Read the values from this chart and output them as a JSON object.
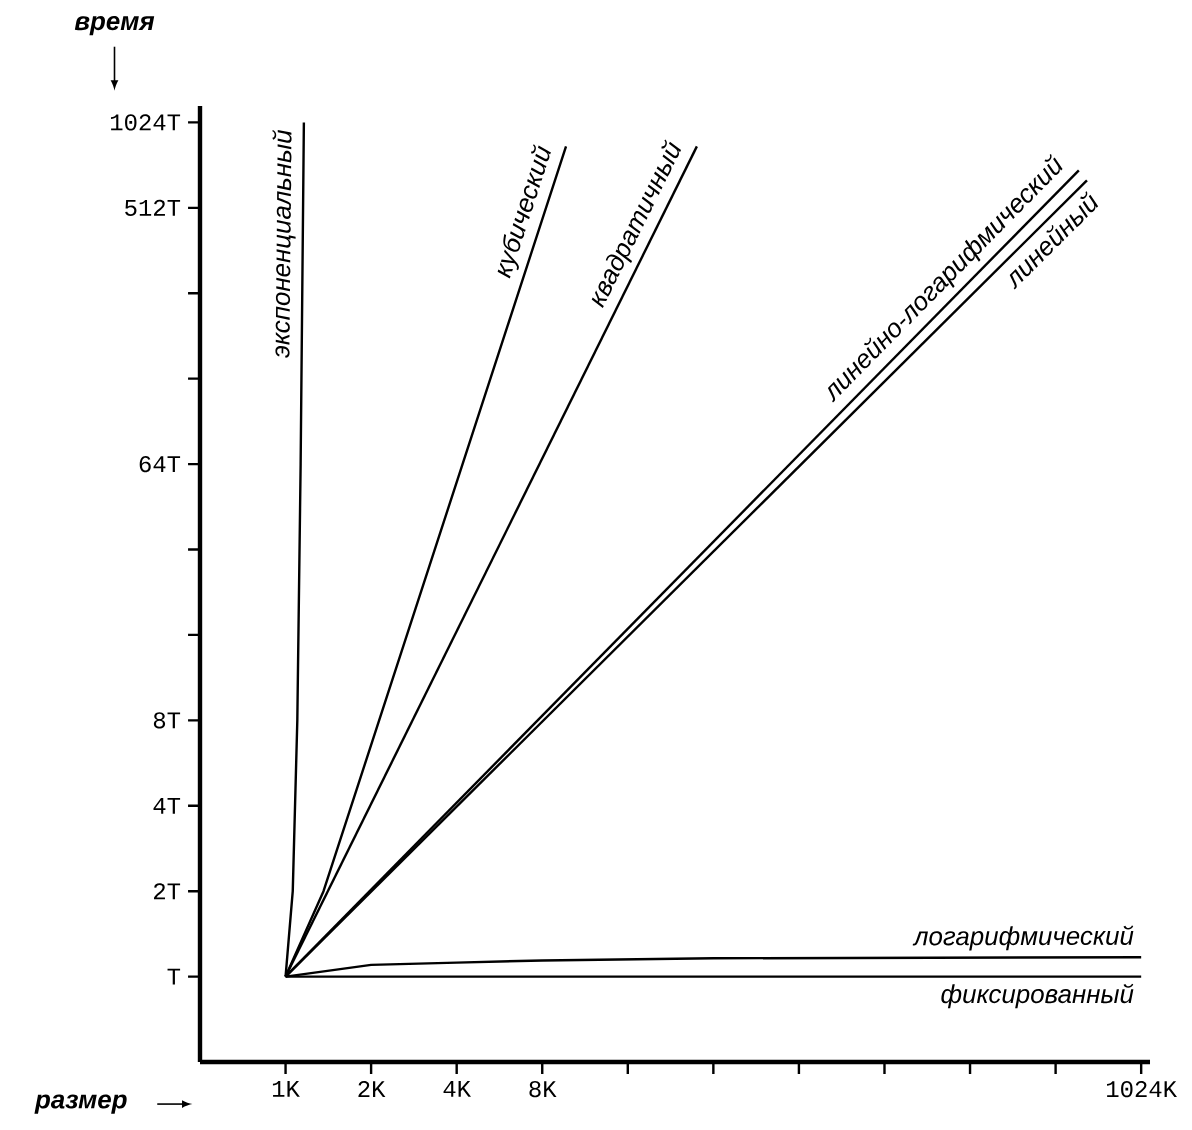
{
  "chart_data": {
    "type": "line",
    "xlabel": "размер",
    "ylabel": "время",
    "log": "xy",
    "marker": "none",
    "line_style": "solid",
    "xlim": [
      0.5,
      1100
    ],
    "ylim": [
      0.5,
      1170
    ],
    "xticks": [
      {
        "value": 1,
        "label": "1K"
      },
      {
        "value": 2,
        "label": "2K"
      },
      {
        "value": 4,
        "label": "4K"
      },
      {
        "value": 8,
        "label": "8K"
      },
      {
        "value": 16,
        "label": null
      },
      {
        "value": 32,
        "label": null
      },
      {
        "value": 64,
        "label": null
      },
      {
        "value": 128,
        "label": null
      },
      {
        "value": 256,
        "label": null
      },
      {
        "value": 512,
        "label": null
      },
      {
        "value": 1024,
        "label": "1024K"
      }
    ],
    "yticks": [
      {
        "value": 1,
        "label": "T"
      },
      {
        "value": 2,
        "label": "2T"
      },
      {
        "value": 4,
        "label": "4T"
      },
      {
        "value": 8,
        "label": "8T"
      },
      {
        "value": 16,
        "label": null
      },
      {
        "value": 32,
        "label": null
      },
      {
        "value": 64,
        "label": "64T"
      },
      {
        "value": 128,
        "label": null
      },
      {
        "value": 256,
        "label": null
      },
      {
        "value": 512,
        "label": "512T"
      },
      {
        "value": 1024,
        "label": "1024T"
      }
    ],
    "series": [
      {
        "name": "экспоненциальный",
        "color": "#000000",
        "x": [
          1,
          1.06,
          1.1,
          1.13,
          1.16
        ],
        "values": [
          1,
          2,
          8,
          64,
          1024
        ]
      },
      {
        "name": "кубический",
        "color": "#000000",
        "x": [
          1,
          1.36,
          9.7
        ],
        "values": [
          1,
          2,
          843
        ]
      },
      {
        "name": "квадратичный",
        "color": "#000000",
        "x": [
          1,
          28
        ],
        "values": [
          1,
          843
        ]
      },
      {
        "name": "линейно-логарифмический",
        "color": "#000000",
        "x": [
          1,
          618
        ],
        "values": [
          1,
          694
        ]
      },
      {
        "name": "линейный",
        "color": "#000000",
        "x": [
          1,
          660
        ],
        "values": [
          1,
          640
        ]
      },
      {
        "name": "логарифмический",
        "color": "#000000",
        "x": [
          1,
          2,
          4,
          8,
          32,
          1024
        ],
        "values": [
          1,
          1.1,
          1.12,
          1.14,
          1.16,
          1.17
        ]
      },
      {
        "name": "фиксированный",
        "color": "#000000",
        "x": [
          1,
          1024
        ],
        "values": [
          1,
          1
        ]
      }
    ]
  }
}
